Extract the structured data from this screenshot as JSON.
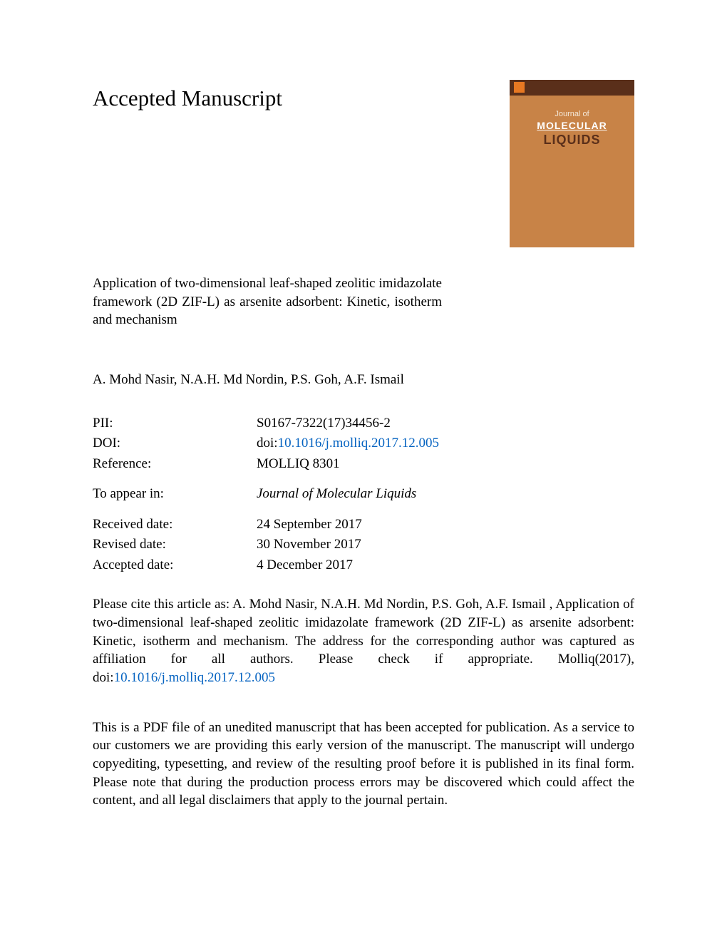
{
  "heading": "Accepted Manuscript",
  "title": "Application of two-dimensional leaf-shaped zeolitic imidazolate framework (2D ZIF-L) as arsenite adsorbent: Kinetic, isotherm and mechanism",
  "authors": "A. Mohd Nasir, N.A.H. Md Nordin, P.S. Goh, A.F. Ismail",
  "cover": {
    "journal_prefix": "Journal of",
    "journal_line1": "MOLECULAR",
    "journal_line2": "LIQUIDS"
  },
  "meta": {
    "pii_label": "PII:",
    "pii_value": "S0167-7322(17)34456-2",
    "doi_label": "DOI:",
    "doi_prefix": "doi:",
    "doi_link": "10.1016/j.molliq.2017.12.005",
    "reference_label": "Reference:",
    "reference_value": "MOLLIQ 8301",
    "appear_label": "To appear in:",
    "appear_value": "Journal of Molecular Liquids",
    "received_label": "Received date:",
    "received_value": "24 September 2017",
    "revised_label": "Revised date:",
    "revised_value": "30 November 2017",
    "accepted_label": "Accepted date:",
    "accepted_value": "4 December 2017"
  },
  "citation": {
    "text_before": "Please cite this article as: A. Mohd Nasir, N.A.H. Md Nordin, P.S. Goh, A.F. Ismail , Application of two-dimensional leaf-shaped zeolitic imidazolate framework (2D ZIF-L) as arsenite adsorbent: Kinetic, isotherm and mechanism. The address for the corresponding author was captured as affiliation for all authors. Please check if appropriate. Molliq(2017), doi:",
    "link": "10.1016/j.molliq.2017.12.005"
  },
  "disclaimer": "This is a PDF file of an unedited manuscript that has been accepted for publication. As a service to our customers we are providing this early version of the manuscript. The manuscript will undergo copyediting, typesetting, and review of the resulting proof before it is published in its final form. Please note that during the production process errors may be discovered which could affect the content, and all legal disclaimers that apply to the journal pertain.",
  "colors": {
    "cover_bg": "#c88347",
    "cover_top": "#5a2f1a",
    "cover_logo": "#e87822",
    "link": "#0563c1",
    "text": "#000000",
    "page_bg": "#ffffff"
  }
}
